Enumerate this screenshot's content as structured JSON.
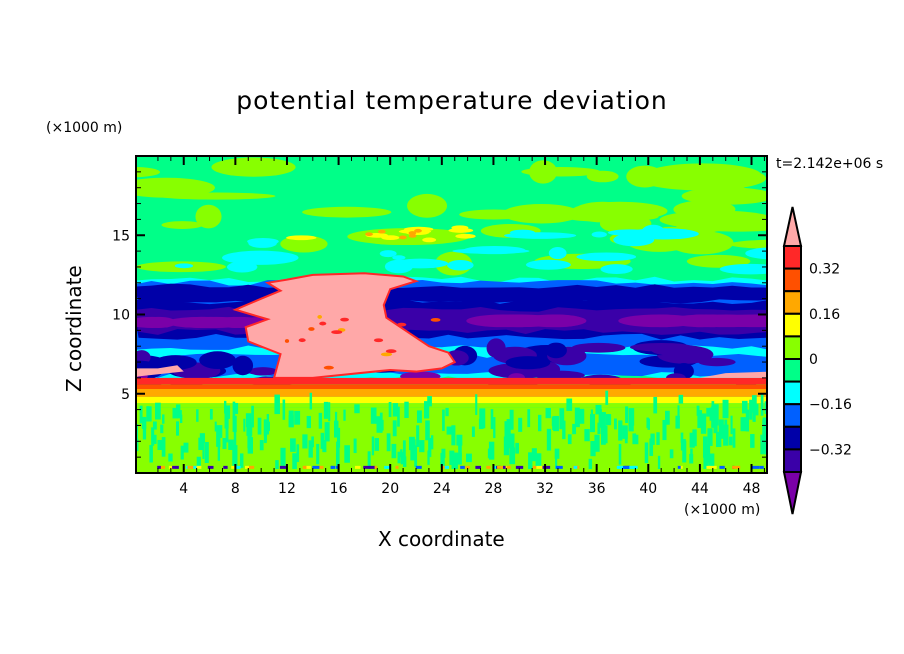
{
  "chart_data": {
    "type": "heatmap",
    "title": "potential temperature deviation",
    "xlabel": "X coordinate",
    "ylabel": "Z coordinate",
    "x_unit": "(×1000 m)",
    "y_unit": "(×1000 m)",
    "annotation": "t=2.142e+06 s",
    "xlim": [
      0.3,
      49.2
    ],
    "ylim": [
      0,
      20
    ],
    "x_ticks": [
      4,
      8,
      12,
      16,
      20,
      24,
      28,
      32,
      36,
      40,
      44,
      48
    ],
    "y_ticks": [
      5,
      10,
      15
    ],
    "colorbar": {
      "levels": [
        -0.4,
        -0.32,
        -0.24,
        -0.16,
        -0.08,
        0,
        0.08,
        0.16,
        0.24,
        0.32,
        0.4
      ],
      "tick_labels": [
        "0.32",
        "0.16",
        "0",
        "−0.16",
        "−0.32"
      ],
      "tick_values": [
        0.32,
        0.16,
        0,
        -0.16,
        -0.32
      ],
      "colors_low_to_high": [
        "#7a00a8",
        "#3a00a8",
        "#0000a8",
        "#0060ff",
        "#00ffff",
        "#00ff88",
        "#88ff00",
        "#ffff00",
        "#ffa800",
        "#ff5000",
        "#ff2828",
        "#ffa8a8"
      ],
      "extend": "both"
    }
  }
}
